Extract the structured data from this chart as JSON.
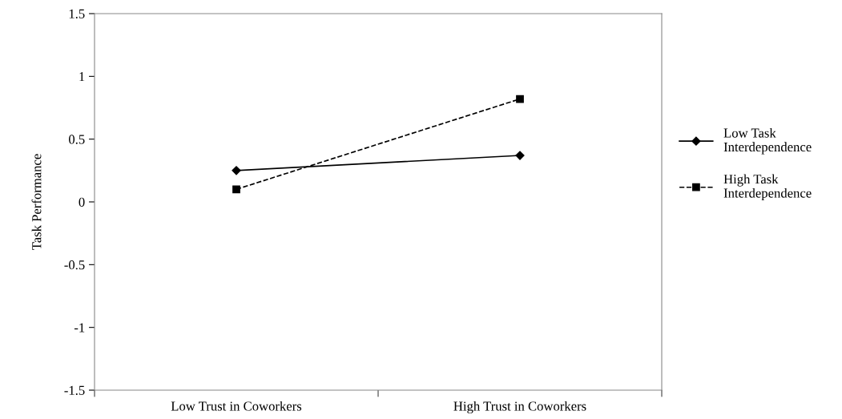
{
  "chart_data": {
    "type": "line",
    "ylabel": "Task Performance",
    "categories": [
      "Low Trust in Coworkers",
      "High Trust in Coworkers"
    ],
    "series": [
      {
        "name": "Low Task\nInterdependence",
        "color": "#000000",
        "values": [
          0.25,
          0.37
        ],
        "marker": "diamond",
        "line_style": "solid"
      },
      {
        "name": "High Task\nInterdependence",
        "color": "#000000",
        "values": [
          0.1,
          0.82
        ],
        "marker": "square",
        "line_style": "dashed"
      }
    ],
    "ylim": [
      -1.5,
      1.5
    ],
    "yticks": [
      {
        "value": -1.5,
        "label": "-1.5"
      },
      {
        "value": -1,
        "label": "-1"
      },
      {
        "value": -0.5,
        "label": "-0.5"
      },
      0,
      0.5,
      1,
      1.5
    ],
    "grid": false,
    "legend": "right"
  }
}
